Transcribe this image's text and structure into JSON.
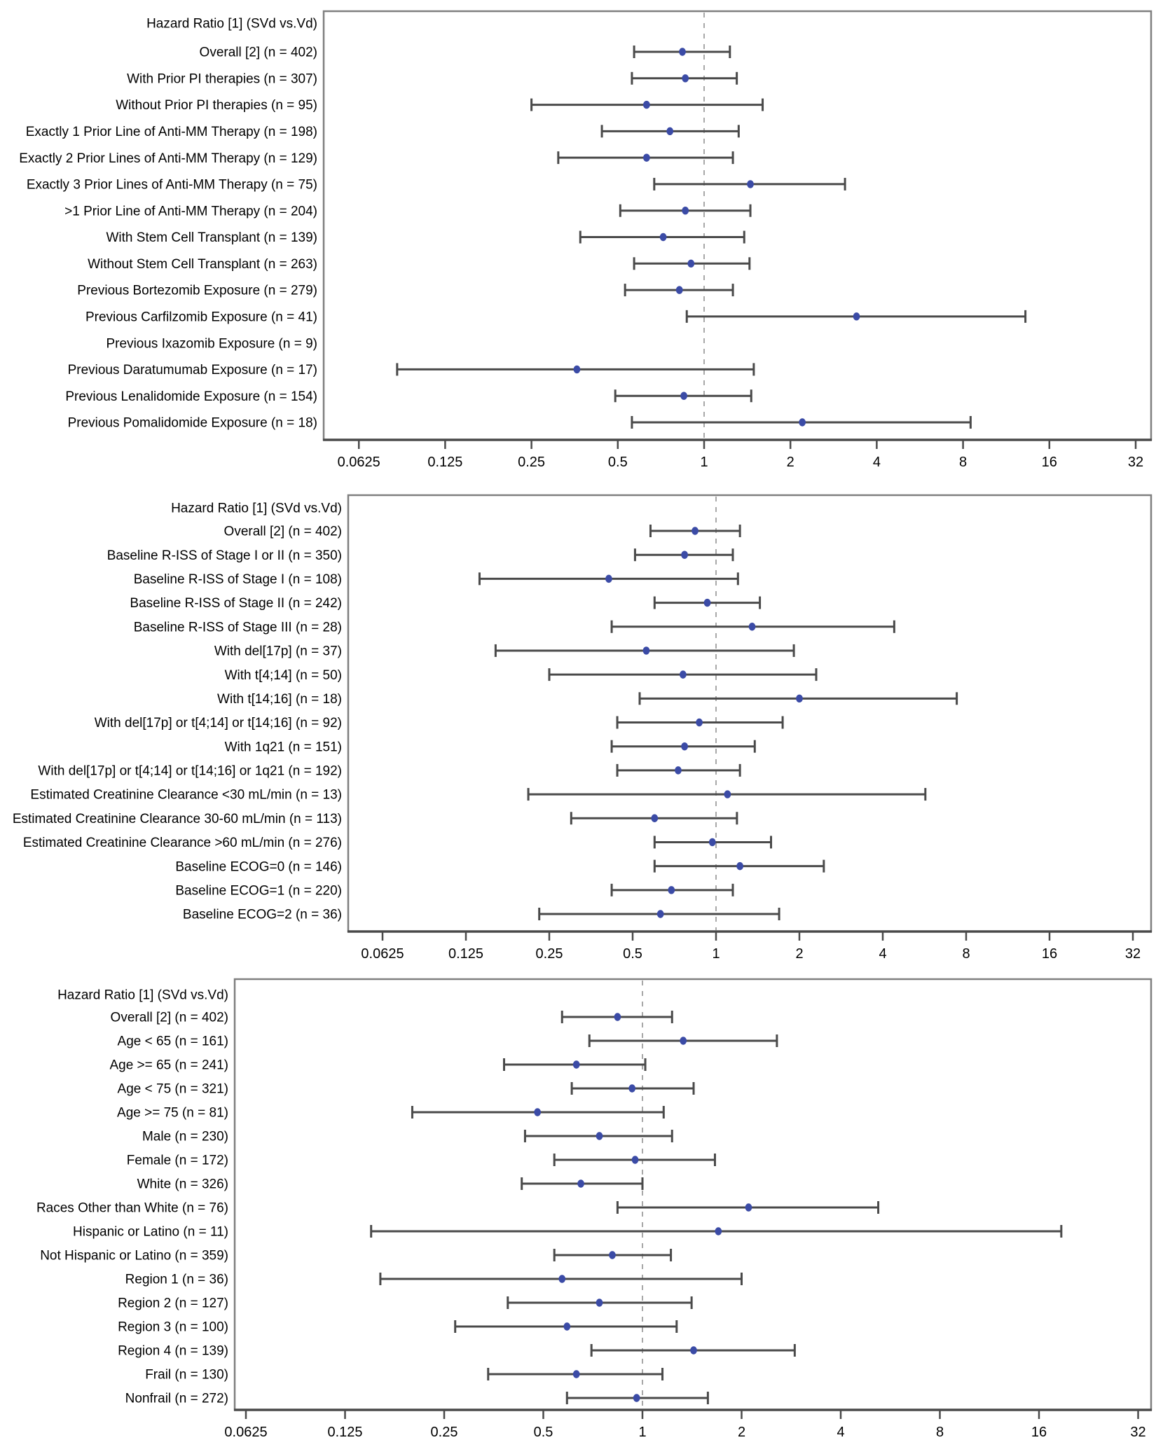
{
  "page": {
    "background": "#ffffff",
    "description_header_repeated_on_each_panel": "Hazard Ratio [1] (SVd vs.Vd)"
  },
  "colors": {
    "point_color": "#3b4ba6",
    "ci_color": "#4a4a4a",
    "border_color": "#7f7f7f",
    "axis_color": "#4a4a4a",
    "reference_line_color": "#a8a8a8",
    "text_color": "#000000"
  },
  "chart_data": [
    {
      "type": "forest",
      "id": "prior-therapies",
      "header": "Hazard Ratio [1] (SVd vs.Vd)",
      "x_axis": {
        "scale": "log2",
        "tick_labels": [
          "0.0625",
          "0.125",
          "0.25",
          "0.5",
          "1",
          "2",
          "4",
          "8",
          "16",
          "32"
        ],
        "tick_values": [
          0.0625,
          0.125,
          0.25,
          0.5,
          1,
          2,
          4,
          8,
          16,
          32
        ],
        "reference_line": 1,
        "xlim": [
          0.047,
          36
        ]
      },
      "rows": [
        {
          "label": "Overall [2] (n = 402)",
          "hr": 0.84,
          "ci_low": 0.57,
          "ci_high": 1.23
        },
        {
          "label": "With Prior PI therapies (n = 307)",
          "hr": 0.86,
          "ci_low": 0.56,
          "ci_high": 1.3
        },
        {
          "label": "Without Prior PI therapies (n = 95)",
          "hr": 0.63,
          "ci_low": 0.25,
          "ci_high": 1.6
        },
        {
          "label": "Exactly 1 Prior Line of Anti-MM Therapy (n = 198)",
          "hr": 0.76,
          "ci_low": 0.44,
          "ci_high": 1.32
        },
        {
          "label": "Exactly 2 Prior Lines of Anti-MM Therapy (n = 129)",
          "hr": 0.63,
          "ci_low": 0.31,
          "ci_high": 1.26
        },
        {
          "label": "Exactly 3 Prior Lines of Anti-MM Therapy (n = 75)",
          "hr": 1.45,
          "ci_low": 0.67,
          "ci_high": 3.1
        },
        {
          "label": ">1 Prior Line of Anti-MM Therapy (n = 204)",
          "hr": 0.86,
          "ci_low": 0.51,
          "ci_high": 1.45
        },
        {
          "label": "With Stem Cell Transplant (n = 139)",
          "hr": 0.72,
          "ci_low": 0.37,
          "ci_high": 1.38
        },
        {
          "label": "Without Stem Cell Transplant (n = 263)",
          "hr": 0.9,
          "ci_low": 0.57,
          "ci_high": 1.44
        },
        {
          "label": "Previous Bortezomib Exposure  (n = 279)",
          "hr": 0.82,
          "ci_low": 0.53,
          "ci_high": 1.26
        },
        {
          "label": "Previous Carfilzomib Exposure (n = 41)",
          "hr": 3.4,
          "ci_low": 0.87,
          "ci_high": 13.2
        },
        {
          "label": "Previous Ixazomib Exposure (n = 9)",
          "hr": null,
          "ci_low": null,
          "ci_high": null
        },
        {
          "label": "Previous Daratumumab Exposure (n = 17)",
          "hr": 0.36,
          "ci_low": 0.085,
          "ci_high": 1.49
        },
        {
          "label": "Previous Lenalidomide Exposure (n = 154)",
          "hr": 0.85,
          "ci_low": 0.49,
          "ci_high": 1.46
        },
        {
          "label": "Previous Pomalidomide Exposure (n = 18)",
          "hr": 2.2,
          "ci_low": 0.56,
          "ci_high": 8.5
        }
      ]
    },
    {
      "type": "forest",
      "id": "disease-characteristics",
      "header": "Hazard Ratio [1] (SVd vs.Vd)",
      "x_axis": {
        "scale": "log2",
        "tick_labels": [
          "0.0625",
          "0.125",
          "0.25",
          "0.5",
          "1",
          "2",
          "4",
          "8",
          "16",
          "32"
        ],
        "tick_values": [
          0.0625,
          0.125,
          0.25,
          0.5,
          1,
          2,
          4,
          8,
          16,
          32
        ],
        "reference_line": 1,
        "xlim": [
          0.047,
          36
        ]
      },
      "rows": [
        {
          "label": "Overall [2] (n = 402)",
          "hr": 0.84,
          "ci_low": 0.58,
          "ci_high": 1.22
        },
        {
          "label": "Baseline R-ISS of Stage I or II (n = 350)",
          "hr": 0.77,
          "ci_low": 0.51,
          "ci_high": 1.15
        },
        {
          "label": "Baseline R-ISS of Stage I (n = 108)",
          "hr": 0.41,
          "ci_low": 0.14,
          "ci_high": 1.2
        },
        {
          "label": "Baseline R-ISS of Stage II (n = 242)",
          "hr": 0.93,
          "ci_low": 0.6,
          "ci_high": 1.44
        },
        {
          "label": "Baseline R-ISS of Stage III (n = 28)",
          "hr": 1.35,
          "ci_low": 0.42,
          "ci_high": 4.4
        },
        {
          "label": "With del[17p]  (n = 37)",
          "hr": 0.56,
          "ci_low": 0.16,
          "ci_high": 1.91
        },
        {
          "label": "With t[4;14]  (n = 50)",
          "hr": 0.76,
          "ci_low": 0.25,
          "ci_high": 2.3
        },
        {
          "label": "With t[14;16] (n = 18)",
          "hr": 2.0,
          "ci_low": 0.53,
          "ci_high": 7.4
        },
        {
          "label": "With del[17p] or t[4;14] or t[14;16] (n = 92)",
          "hr": 0.87,
          "ci_low": 0.44,
          "ci_high": 1.74
        },
        {
          "label": "With 1q21 (n = 151)",
          "hr": 0.77,
          "ci_low": 0.42,
          "ci_high": 1.38
        },
        {
          "label": "With del[17p] or t[4;14] or t[14;16] or 1q21 (n = 192)",
          "hr": 0.73,
          "ci_low": 0.44,
          "ci_high": 1.22
        },
        {
          "label": "Estimated Creatinine Clearance <30 mL/min (n = 13)",
          "hr": 1.1,
          "ci_low": 0.21,
          "ci_high": 5.7
        },
        {
          "label": "Estimated Creatinine Clearance 30-60 mL/min (n = 113)",
          "hr": 0.6,
          "ci_low": 0.3,
          "ci_high": 1.19
        },
        {
          "label": "Estimated Creatinine Clearance >60 mL/min (n = 276)",
          "hr": 0.97,
          "ci_low": 0.6,
          "ci_high": 1.58
        },
        {
          "label": "Baseline ECOG=0 (n = 146)",
          "hr": 1.22,
          "ci_low": 0.6,
          "ci_high": 2.45
        },
        {
          "label": "Baseline ECOG=1 (n = 220)",
          "hr": 0.69,
          "ci_low": 0.42,
          "ci_high": 1.15
        },
        {
          "label": "Baseline ECOG=2 (n = 36)",
          "hr": 0.63,
          "ci_low": 0.23,
          "ci_high": 1.69
        }
      ]
    },
    {
      "type": "forest",
      "id": "demographics",
      "header": "Hazard Ratio [1] (SVd vs.Vd)",
      "x_axis": {
        "scale": "log2",
        "tick_labels": [
          "0.0625",
          "0.125",
          "0.25",
          "0.5",
          "1",
          "2",
          "4",
          "8",
          "16",
          "32"
        ],
        "tick_values": [
          0.0625,
          0.125,
          0.25,
          0.5,
          1,
          2,
          4,
          8,
          16,
          32
        ],
        "reference_line": 1,
        "xlim": [
          0.058,
          35
        ]
      },
      "rows": [
        {
          "label": "Overall [2] (n = 402)",
          "hr": 0.84,
          "ci_low": 0.57,
          "ci_high": 1.23
        },
        {
          "label": "Age < 65 (n = 161)",
          "hr": 1.33,
          "ci_low": 0.69,
          "ci_high": 2.56
        },
        {
          "label": "Age >= 65 (n = 241)",
          "hr": 0.63,
          "ci_low": 0.38,
          "ci_high": 1.02
        },
        {
          "label": "Age < 75 (n = 321)",
          "hr": 0.93,
          "ci_low": 0.61,
          "ci_high": 1.43
        },
        {
          "label": "Age >= 75 (n = 81)",
          "hr": 0.48,
          "ci_low": 0.2,
          "ci_high": 1.16
        },
        {
          "label": "Male (n = 230)",
          "hr": 0.74,
          "ci_low": 0.44,
          "ci_high": 1.23
        },
        {
          "label": "Female (n = 172)",
          "hr": 0.95,
          "ci_low": 0.54,
          "ci_high": 1.66
        },
        {
          "label": "White (n = 326)",
          "hr": 0.65,
          "ci_low": 0.43,
          "ci_high": 1.0
        },
        {
          "label": "Races Other than White (n = 76)",
          "hr": 2.1,
          "ci_low": 0.84,
          "ci_high": 5.2
        },
        {
          "label": "Hispanic or Latino (n = 11)",
          "hr": 1.7,
          "ci_low": 0.15,
          "ci_high": 18.7
        },
        {
          "label": "Not Hispanic or Latino (n = 359)",
          "hr": 0.81,
          "ci_low": 0.54,
          "ci_high": 1.22
        },
        {
          "label": "Region 1 (n = 36)",
          "hr": 0.57,
          "ci_low": 0.16,
          "ci_high": 2.0
        },
        {
          "label": "Region 2 (n = 127)",
          "hr": 0.74,
          "ci_low": 0.39,
          "ci_high": 1.41
        },
        {
          "label": "Region 3 (n = 100)",
          "hr": 0.59,
          "ci_low": 0.27,
          "ci_high": 1.27
        },
        {
          "label": "Region 4 (n = 139)",
          "hr": 1.43,
          "ci_low": 0.7,
          "ci_high": 2.9
        },
        {
          "label": "Frail (n = 130)",
          "hr": 0.63,
          "ci_low": 0.34,
          "ci_high": 1.15
        },
        {
          "label": "Nonfrail (n = 272)",
          "hr": 0.96,
          "ci_low": 0.59,
          "ci_high": 1.58
        }
      ]
    }
  ]
}
